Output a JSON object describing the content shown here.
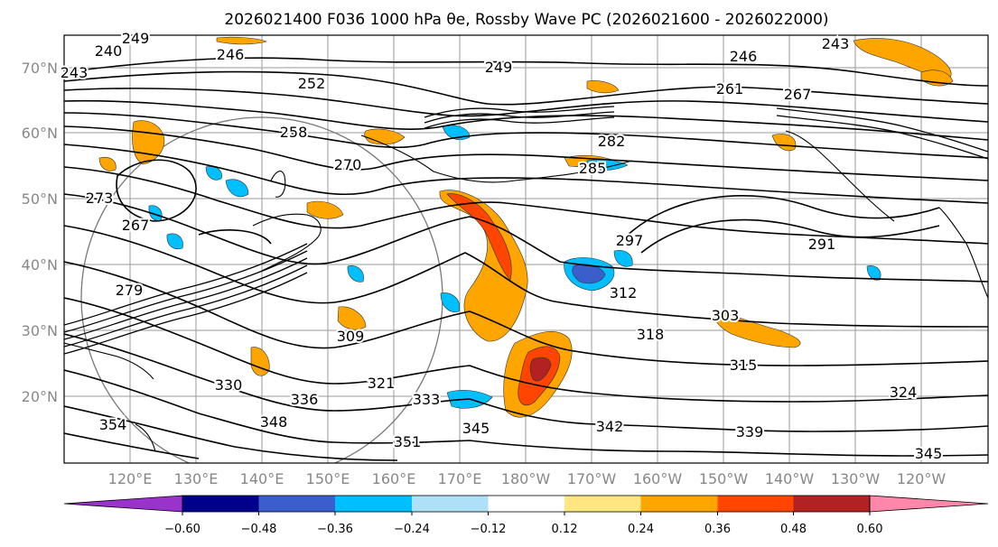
{
  "title": "2026021400 F036 1000 hPa θe, Rossby Wave PC (2026021600 - 2026022000)",
  "map": {
    "lat_labels": [
      "70°N",
      "60°N",
      "50°N",
      "40°N",
      "30°N",
      "20°N"
    ],
    "lon_labels": [
      "120°E",
      "130°E",
      "140°E",
      "150°E",
      "160°E",
      "170°E",
      "180°W",
      "170°W",
      "160°W",
      "150°W",
      "140°W",
      "130°W",
      "120°W"
    ]
  },
  "contour_labels": [
    {
      "t": "249"
    },
    {
      "t": "246"
    },
    {
      "t": "252"
    },
    {
      "t": "243"
    },
    {
      "t": "240"
    },
    {
      "t": "249"
    },
    {
      "t": "246"
    },
    {
      "t": "261"
    },
    {
      "t": "267"
    },
    {
      "t": "243"
    },
    {
      "t": "258"
    },
    {
      "t": "270"
    },
    {
      "t": "282"
    },
    {
      "t": "285"
    },
    {
      "t": "273"
    },
    {
      "t": "267"
    },
    {
      "t": "279"
    },
    {
      "t": "297"
    },
    {
      "t": "291"
    },
    {
      "t": "312"
    },
    {
      "t": "303"
    },
    {
      "t": "318"
    },
    {
      "t": "309"
    },
    {
      "t": "315"
    },
    {
      "t": "321"
    },
    {
      "t": "330"
    },
    {
      "t": "336"
    },
    {
      "t": "333"
    },
    {
      "t": "324"
    },
    {
      "t": "348"
    },
    {
      "t": "342"
    },
    {
      "t": "339"
    },
    {
      "t": "354"
    },
    {
      "t": "351"
    },
    {
      "t": "345"
    },
    {
      "t": "345"
    }
  ],
  "colorbar": {
    "ticks": [
      "−0.60",
      "−0.48",
      "−0.36",
      "−0.24",
      "−0.12",
      "0.12",
      "0.24",
      "0.36",
      "0.48",
      "0.60"
    ],
    "colors": [
      "#9933cc",
      "#00008b",
      "#3a5fcd",
      "#00bfff",
      "#aee0f8",
      "#ffffff",
      "#ffe680",
      "#ffa500",
      "#ff4500",
      "#b22222",
      "#ff88aa"
    ]
  }
}
